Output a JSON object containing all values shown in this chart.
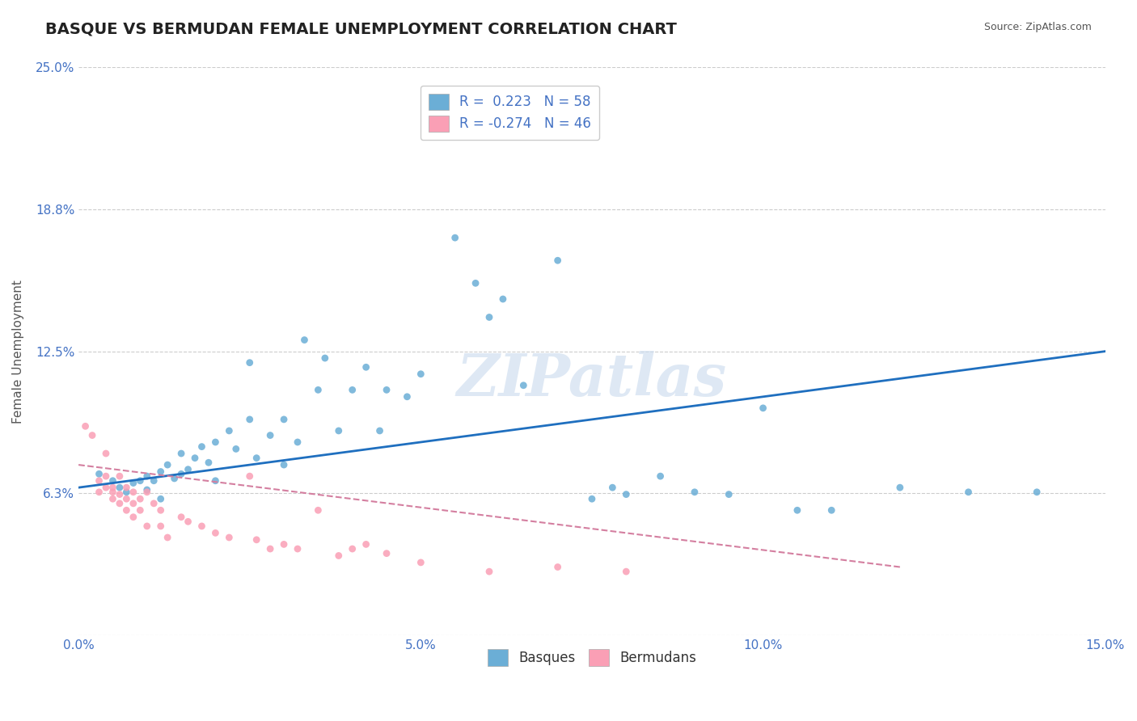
{
  "title": "BASQUE VS BERMUDAN FEMALE UNEMPLOYMENT CORRELATION CHART",
  "source_text": "Source: ZipAtlas.com",
  "xlabel": "",
  "ylabel": "Female Unemployment",
  "watermark": "ZIPatlas",
  "xlim": [
    0.0,
    0.15
  ],
  "ylim": [
    0.0,
    0.25
  ],
  "xticks": [
    0.0,
    0.05,
    0.1,
    0.15
  ],
  "xticklabels": [
    "0.0%",
    "5.0%",
    "10.0%",
    "15.0%"
  ],
  "yticks": [
    0.0,
    0.0625,
    0.125,
    0.1875,
    0.25
  ],
  "yticklabels": [
    "",
    "6.3%",
    "12.5%",
    "18.8%",
    "25.0%"
  ],
  "blue_color": "#6baed6",
  "pink_color": "#fa9fb5",
  "trend_blue": "#1f6fbf",
  "trend_pink": "#d47fa0",
  "R_blue": 0.223,
  "N_blue": 58,
  "R_pink": -0.274,
  "N_pink": 46,
  "title_fontsize": 14,
  "axis_label_fontsize": 11,
  "tick_fontsize": 11,
  "legend_fontsize": 12,
  "grid_color": "#cccccc",
  "background_color": "#ffffff",
  "blue_scatter": [
    [
      0.003,
      0.071
    ],
    [
      0.005,
      0.068
    ],
    [
      0.006,
      0.065
    ],
    [
      0.007,
      0.063
    ],
    [
      0.008,
      0.067
    ],
    [
      0.009,
      0.068
    ],
    [
      0.01,
      0.064
    ],
    [
      0.01,
      0.07
    ],
    [
      0.011,
      0.068
    ],
    [
      0.012,
      0.072
    ],
    [
      0.012,
      0.06
    ],
    [
      0.013,
      0.075
    ],
    [
      0.014,
      0.069
    ],
    [
      0.015,
      0.08
    ],
    [
      0.015,
      0.071
    ],
    [
      0.016,
      0.073
    ],
    [
      0.017,
      0.078
    ],
    [
      0.018,
      0.083
    ],
    [
      0.019,
      0.076
    ],
    [
      0.02,
      0.085
    ],
    [
      0.02,
      0.068
    ],
    [
      0.022,
      0.09
    ],
    [
      0.023,
      0.082
    ],
    [
      0.025,
      0.095
    ],
    [
      0.025,
      0.12
    ],
    [
      0.026,
      0.078
    ],
    [
      0.028,
      0.088
    ],
    [
      0.03,
      0.075
    ],
    [
      0.03,
      0.095
    ],
    [
      0.032,
      0.085
    ],
    [
      0.033,
      0.13
    ],
    [
      0.035,
      0.108
    ],
    [
      0.036,
      0.122
    ],
    [
      0.038,
      0.09
    ],
    [
      0.04,
      0.108
    ],
    [
      0.042,
      0.118
    ],
    [
      0.044,
      0.09
    ],
    [
      0.045,
      0.108
    ],
    [
      0.048,
      0.105
    ],
    [
      0.05,
      0.115
    ],
    [
      0.055,
      0.175
    ],
    [
      0.058,
      0.155
    ],
    [
      0.06,
      0.14
    ],
    [
      0.062,
      0.148
    ],
    [
      0.065,
      0.11
    ],
    [
      0.07,
      0.165
    ],
    [
      0.075,
      0.06
    ],
    [
      0.078,
      0.065
    ],
    [
      0.08,
      0.062
    ],
    [
      0.085,
      0.07
    ],
    [
      0.09,
      0.063
    ],
    [
      0.095,
      0.062
    ],
    [
      0.1,
      0.1
    ],
    [
      0.105,
      0.055
    ],
    [
      0.11,
      0.055
    ],
    [
      0.12,
      0.065
    ],
    [
      0.13,
      0.063
    ],
    [
      0.14,
      0.063
    ]
  ],
  "pink_scatter": [
    [
      0.001,
      0.092
    ],
    [
      0.002,
      0.088
    ],
    [
      0.003,
      0.063
    ],
    [
      0.003,
      0.068
    ],
    [
      0.004,
      0.065
    ],
    [
      0.004,
      0.07
    ],
    [
      0.004,
      0.08
    ],
    [
      0.005,
      0.063
    ],
    [
      0.005,
      0.065
    ],
    [
      0.005,
      0.06
    ],
    [
      0.006,
      0.062
    ],
    [
      0.006,
      0.058
    ],
    [
      0.006,
      0.07
    ],
    [
      0.007,
      0.065
    ],
    [
      0.007,
      0.055
    ],
    [
      0.007,
      0.06
    ],
    [
      0.008,
      0.058
    ],
    [
      0.008,
      0.063
    ],
    [
      0.008,
      0.052
    ],
    [
      0.009,
      0.06
    ],
    [
      0.009,
      0.055
    ],
    [
      0.01,
      0.048
    ],
    [
      0.01,
      0.063
    ],
    [
      0.011,
      0.058
    ],
    [
      0.012,
      0.055
    ],
    [
      0.012,
      0.048
    ],
    [
      0.013,
      0.043
    ],
    [
      0.015,
      0.052
    ],
    [
      0.016,
      0.05
    ],
    [
      0.018,
      0.048
    ],
    [
      0.02,
      0.045
    ],
    [
      0.022,
      0.043
    ],
    [
      0.025,
      0.07
    ],
    [
      0.026,
      0.042
    ],
    [
      0.028,
      0.038
    ],
    [
      0.03,
      0.04
    ],
    [
      0.032,
      0.038
    ],
    [
      0.035,
      0.055
    ],
    [
      0.038,
      0.035
    ],
    [
      0.04,
      0.038
    ],
    [
      0.042,
      0.04
    ],
    [
      0.045,
      0.036
    ],
    [
      0.05,
      0.032
    ],
    [
      0.06,
      0.028
    ],
    [
      0.07,
      0.03
    ],
    [
      0.08,
      0.028
    ]
  ]
}
